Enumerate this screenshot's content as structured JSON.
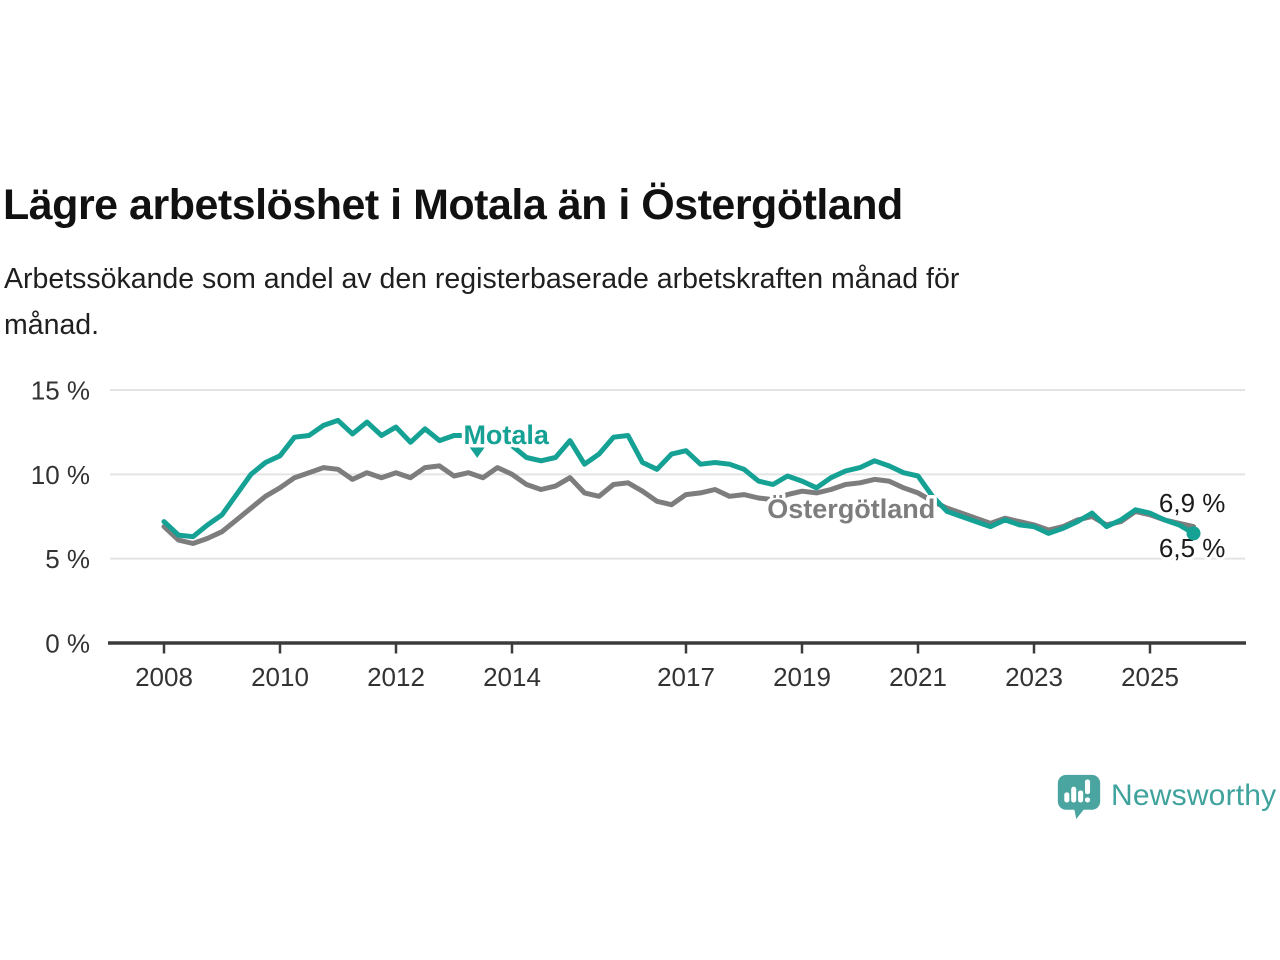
{
  "header": {
    "title": "Lägre arbetslöshet i Motala än i Östergötland",
    "subtitle_lines": [
      "Arbetssökande som andel av den registerbaserade arbetskraften månad för",
      "månad."
    ]
  },
  "colors": {
    "motala": "#16a195",
    "ostergotland": "#7d7d7d",
    "grid": "#e4e4e4",
    "axis": "#3b3b3b",
    "tick_text": "#333333",
    "value_text": "#1a1a1a",
    "logo": "#4aa5a0"
  },
  "chart_data": {
    "type": "line",
    "title": "Lägre arbetslöshet i Motala än i Östergötland",
    "subtitle": "Arbetssökande som andel av den registerbaserade arbetskraften månad för månad.",
    "xlabel": "",
    "ylabel": "",
    "ylim": [
      0,
      15
    ],
    "yticks": [
      0,
      5,
      10,
      15
    ],
    "ytick_suffix": " %",
    "xticks": [
      2008,
      2010,
      2012,
      2014,
      2017,
      2019,
      2021,
      2023,
      2025
    ],
    "grid": true,
    "legend_position": "inline-labels",
    "x": [
      2008,
      2008.25,
      2008.5,
      2008.75,
      2009,
      2009.25,
      2009.5,
      2009.75,
      2010,
      2010.25,
      2010.5,
      2010.75,
      2011,
      2011.25,
      2011.5,
      2011.75,
      2012,
      2012.25,
      2012.5,
      2012.75,
      2013,
      2013.25,
      2013.5,
      2013.75,
      2014,
      2014.25,
      2014.5,
      2014.75,
      2015,
      2015.25,
      2015.5,
      2015.75,
      2016,
      2016.25,
      2016.5,
      2016.75,
      2017,
      2017.25,
      2017.5,
      2017.75,
      2018,
      2018.25,
      2018.5,
      2018.75,
      2019,
      2019.25,
      2019.5,
      2019.75,
      2020,
      2020.25,
      2020.5,
      2020.75,
      2021,
      2021.25,
      2021.5,
      2021.75,
      2022,
      2022.25,
      2022.5,
      2022.75,
      2023,
      2023.25,
      2023.5,
      2023.75,
      2024,
      2024.25,
      2024.5,
      2024.75,
      2025,
      2025.25,
      2025.5,
      2025.75
    ],
    "series": [
      {
        "name": "Motala",
        "color": "#16a195",
        "end_label": "6,5 %",
        "end_value": 6.5,
        "end_dot": true,
        "values": [
          7.2,
          6.4,
          6.3,
          7.0,
          7.6,
          8.8,
          10.0,
          10.7,
          11.1,
          12.2,
          12.3,
          12.9,
          13.2,
          12.4,
          13.1,
          12.3,
          12.8,
          11.9,
          12.7,
          12.0,
          12.3,
          12.3,
          11.9,
          12.4,
          11.7,
          11.0,
          10.8,
          11.0,
          12.0,
          10.6,
          11.2,
          12.2,
          12.3,
          10.7,
          10.3,
          11.2,
          11.4,
          10.6,
          10.7,
          10.6,
          10.3,
          9.6,
          9.4,
          9.9,
          9.6,
          9.2,
          9.8,
          10.2,
          10.4,
          10.8,
          10.5,
          10.1,
          9.9,
          8.7,
          7.8,
          7.5,
          7.2,
          6.9,
          7.3,
          7.0,
          6.9,
          6.5,
          6.8,
          7.2,
          7.7,
          6.9,
          7.3,
          7.9,
          7.7,
          7.3,
          7.0,
          6.5
        ]
      },
      {
        "name": "Östergötland",
        "color": "#7d7d7d",
        "end_label": "6,9 %",
        "end_value": 6.9,
        "end_dot": false,
        "values": [
          6.9,
          6.1,
          5.9,
          6.2,
          6.6,
          7.3,
          8.0,
          8.7,
          9.2,
          9.8,
          10.1,
          10.4,
          10.3,
          9.7,
          10.1,
          9.8,
          10.1,
          9.8,
          10.4,
          10.5,
          9.9,
          10.1,
          9.8,
          10.4,
          10.0,
          9.4,
          9.1,
          9.3,
          9.8,
          8.9,
          8.7,
          9.4,
          9.5,
          9.0,
          8.4,
          8.2,
          8.8,
          8.9,
          9.1,
          8.7,
          8.8,
          8.6,
          8.5,
          8.8,
          9.0,
          8.9,
          9.1,
          9.4,
          9.5,
          9.7,
          9.6,
          9.2,
          8.9,
          8.4,
          8.0,
          7.7,
          7.4,
          7.1,
          7.4,
          7.2,
          7.0,
          6.7,
          6.9,
          7.3,
          7.5,
          7.0,
          7.2,
          7.8,
          7.6,
          7.3,
          7.1,
          6.9
        ]
      }
    ],
    "annotations": [
      {
        "id": "motala-label",
        "text": "Motala",
        "x": 2013.9,
        "y": 11.8,
        "anchor": "middle",
        "bold": true,
        "color": "#16a195",
        "marker": "triangle-down",
        "marker_x": 2013.4,
        "marker_y": 11.3
      },
      {
        "id": "ostergotland-label",
        "text": "Östergötland",
        "x": 2019.85,
        "y": 7.41,
        "anchor": "middle",
        "bold": true,
        "color": "#7d7d7d"
      },
      {
        "id": "end-value-ostergotland",
        "text": "6,9 %",
        "x": 2026.3,
        "y": 7.77,
        "anchor": "end",
        "bold": false,
        "color": "#1a1a1a"
      },
      {
        "id": "end-value-motala",
        "text": "6,5 %",
        "x": 2026.3,
        "y": 5.1,
        "anchor": "end",
        "bold": false,
        "color": "#1a1a1a"
      }
    ]
  },
  "footer": {
    "brand": "Newsworthy"
  }
}
